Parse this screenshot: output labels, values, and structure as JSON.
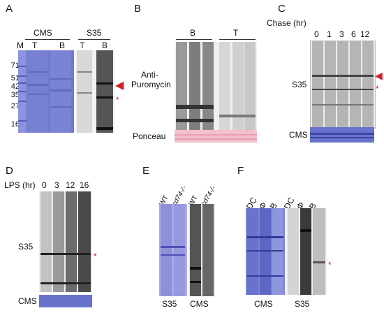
{
  "panels": {
    "A": {
      "letter": "A",
      "group_left": "CMS",
      "group_right": "S35",
      "lanes": [
        "M",
        "T",
        "B",
        "T",
        "B"
      ],
      "mw_markers": [
        "71",
        "51",
        "42",
        "35",
        "27",
        "16"
      ]
    },
    "B": {
      "letter": "B",
      "group_left": "B",
      "group_right": "T",
      "ylabel_line1": "Anti-",
      "ylabel_line2": "Puromycin",
      "bottom_label": "Ponceau"
    },
    "C": {
      "letter": "C",
      "header": "Chase (hr)",
      "lanes": [
        "0",
        "1",
        "3",
        "6",
        "12"
      ],
      "top_label": "S35",
      "bottom_label": "CMS"
    },
    "D": {
      "letter": "D",
      "header": "LPS (hr)",
      "lanes": [
        "0",
        "3",
        "12",
        "16"
      ],
      "top_label": "S35",
      "bottom_label": "CMS"
    },
    "E": {
      "letter": "E",
      "lanes_left": [
        "WT",
        "cd74-/-"
      ],
      "lanes_right": [
        "WT",
        "cd74-/-"
      ],
      "bottom_left": "S35",
      "bottom_right": "CMS"
    },
    "F": {
      "letter": "F",
      "lanes_left": [
        "DC",
        "Φ",
        "B"
      ],
      "lanes_right": [
        "DC",
        "Φ",
        "B"
      ],
      "bottom_left": "CMS",
      "bottom_right": "S35"
    }
  },
  "colors": {
    "coomassie": "#5a64c8",
    "ponceau": "#f2b8c6",
    "arrow": "#d0202a",
    "asterisk": "#d0202a"
  }
}
